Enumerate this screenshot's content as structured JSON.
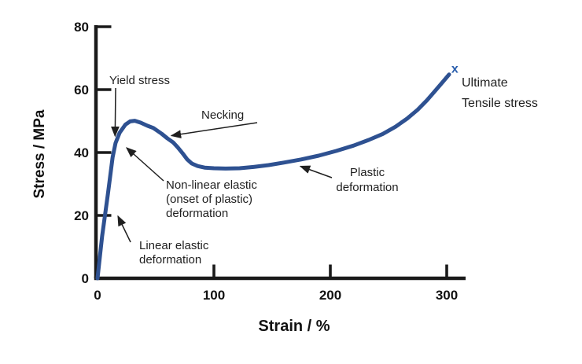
{
  "colors": {
    "curve": "#2e5191",
    "marker": "#2b5fae",
    "annotation_text": "#1f1f1f",
    "axis": "#1a1a1a",
    "background": "#ffffff"
  },
  "annotations": {
    "yield_stress": "Yield stress",
    "necking": "Necking",
    "nonlinear_1": "Non-linear elastic",
    "nonlinear_2": "(onset of plastic)",
    "nonlinear_3": "deformation",
    "linear_1": "Linear elastic",
    "linear_2": "deformation",
    "plastic_1": "Plastic",
    "plastic_2": "deformation",
    "ultimate_1": "Ultimate",
    "ultimate_2": "Tensile stress",
    "uts_marker": "x"
  },
  "chart_data": {
    "type": "line",
    "title": "",
    "xlabel": "Strain / %",
    "ylabel": "Stress / MPa",
    "xlim": [
      0,
      320
    ],
    "ylim": [
      0,
      80
    ],
    "x_ticks": [
      0,
      100,
      200,
      300
    ],
    "y_ticks": [
      0,
      20,
      40,
      60,
      80
    ],
    "grid": false,
    "legend": "none",
    "series": [
      {
        "name": "stress-strain curve",
        "color": "#2e5191",
        "points": [
          [
            0,
            0
          ],
          [
            4,
            13.5
          ],
          [
            9,
            27
          ],
          [
            13,
            38.5
          ],
          [
            15.5,
            43
          ],
          [
            19,
            46.3
          ],
          [
            24,
            48.9
          ],
          [
            28,
            49.9
          ],
          [
            32,
            50.1
          ],
          [
            37,
            49.5
          ],
          [
            43,
            48.5
          ],
          [
            48,
            47.8
          ],
          [
            55,
            46
          ],
          [
            60,
            44.5
          ],
          [
            65,
            43.2
          ],
          [
            69,
            41.6
          ],
          [
            73,
            39.8
          ],
          [
            77,
            37.8
          ],
          [
            81,
            36.5
          ],
          [
            86,
            35.7
          ],
          [
            92,
            35.2
          ],
          [
            100,
            35
          ],
          [
            110,
            34.9
          ],
          [
            122,
            35
          ],
          [
            134,
            35.4
          ],
          [
            147,
            36
          ],
          [
            160,
            36.8
          ],
          [
            175,
            37.8
          ],
          [
            190,
            39
          ],
          [
            205,
            40.5
          ],
          [
            220,
            42.2
          ],
          [
            233,
            44
          ],
          [
            245,
            45.9
          ],
          [
            256,
            48.2
          ],
          [
            266,
            50.8
          ],
          [
            275,
            53.6
          ],
          [
            283,
            56.6
          ],
          [
            290,
            59.6
          ],
          [
            296,
            62.2
          ],
          [
            302,
            64.8
          ]
        ]
      }
    ],
    "marker": {
      "x": 307,
      "y": 66.8,
      "symbol": "x",
      "color": "#2b5fae",
      "label": "Ultimate Tensile stress"
    },
    "key_points": {
      "yield_stress_mpa": 43,
      "yield_strain_pct": 15,
      "peak_stress_mpa": 50,
      "peak_strain_pct": 32,
      "plateau_stress_mpa": 35,
      "ultimate_tensile_stress_mpa": 67,
      "ultimate_tensile_strain_pct": 307
    }
  }
}
